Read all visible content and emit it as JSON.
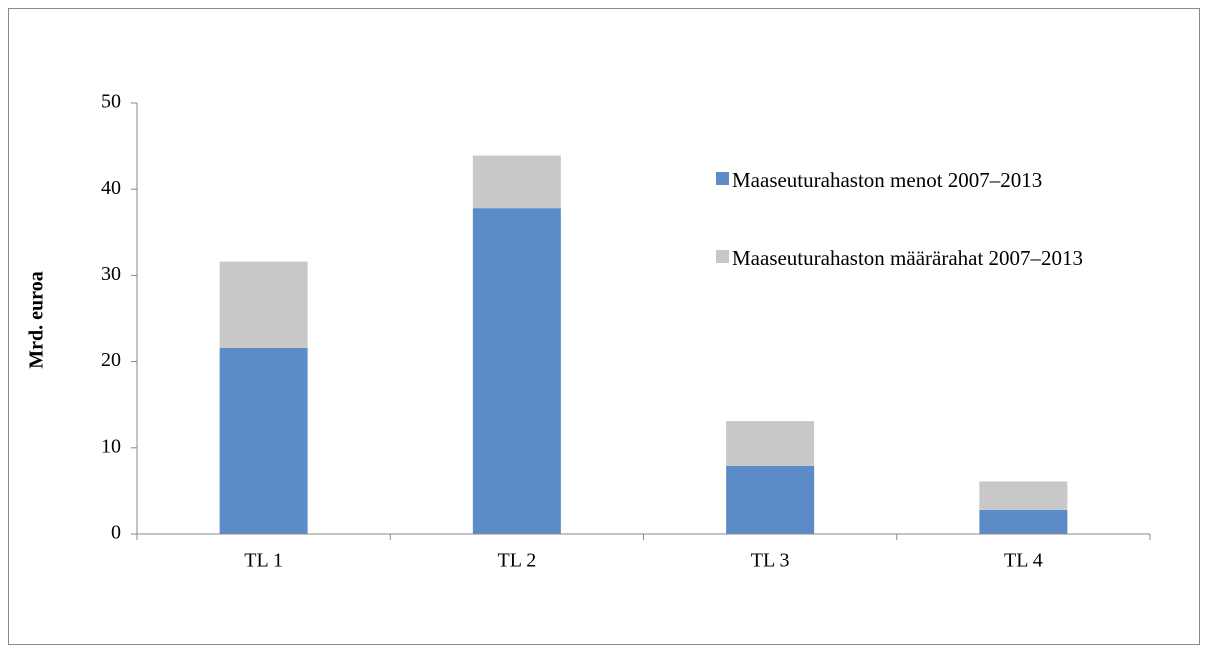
{
  "chart_data": {
    "type": "stacked_bar",
    "ylabel": "Mrd. euroa",
    "categories": [
      "TL 1",
      "TL 2",
      "TL 3",
      "TL 4"
    ],
    "series": [
      {
        "name": "Maaseuturahaston menot 2007–2013",
        "color": "#5b8cc8",
        "values": [
          21.6,
          37.8,
          7.9,
          2.8
        ]
      },
      {
        "name": "Maaseuturahaston määrärahat 2007–2013",
        "color": "#c8c8c8",
        "values": [
          10.0,
          6.1,
          5.2,
          3.3
        ]
      }
    ],
    "ylim": [
      0,
      50
    ],
    "yticks": [
      0,
      10,
      20,
      30,
      40,
      50
    ],
    "grid": false,
    "legend": "right"
  }
}
